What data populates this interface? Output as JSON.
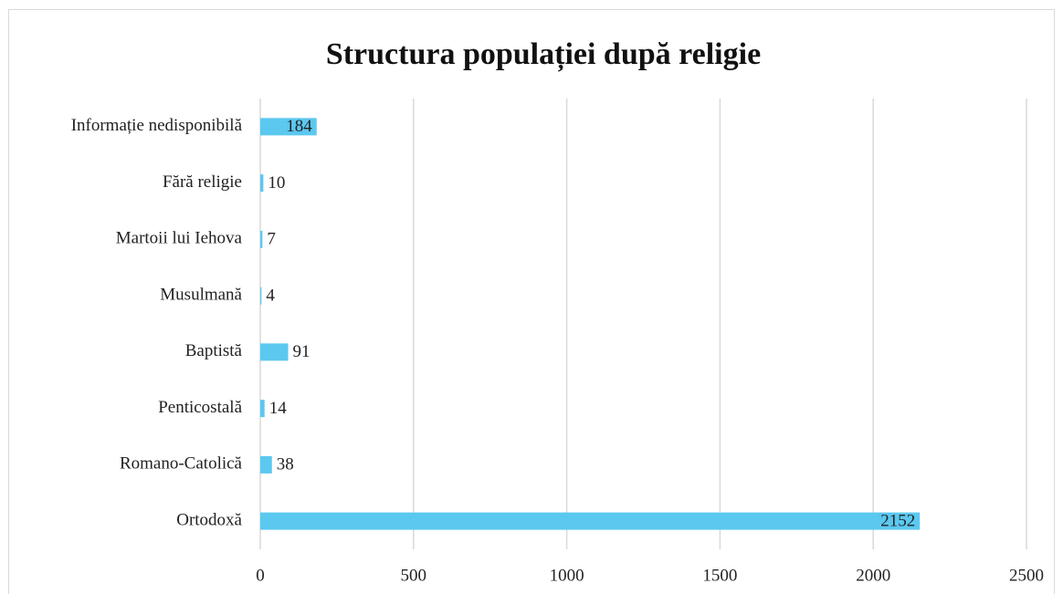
{
  "chart_data": {
    "type": "bar",
    "orientation": "horizontal",
    "title": "Structura populației după religie",
    "categories": [
      "Ortodoxă",
      "Romano-Catolică",
      "Penticostală",
      "Baptistă",
      "Musulmană",
      "Martoii lui Iehova",
      "Fără religie",
      "Informație nedisponibilă"
    ],
    "values": [
      2152,
      38,
      14,
      91,
      4,
      7,
      10,
      184
    ],
    "color": "#5bc8f0",
    "xlim": [
      0,
      2500
    ],
    "xticks": [
      0,
      500,
      1000,
      1500,
      2000,
      2500
    ],
    "grid": true
  }
}
